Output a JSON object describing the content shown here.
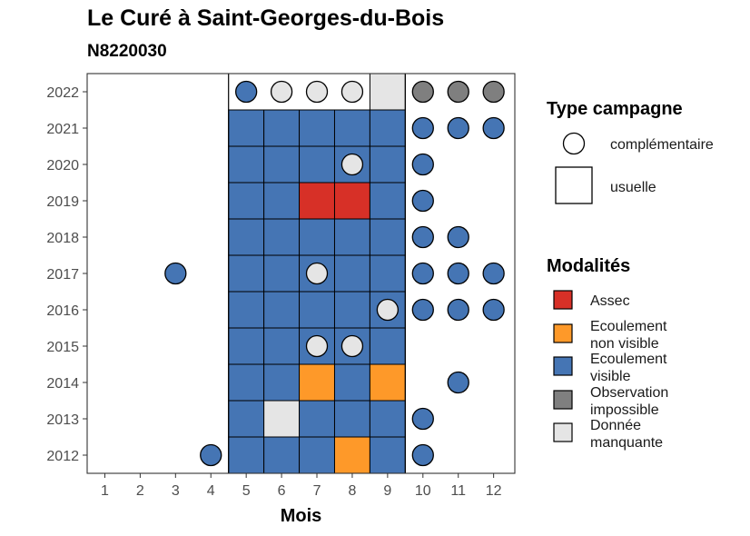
{
  "title": "Le Curé à Saint-Georges-du-Bois",
  "subtitle": "N8220030",
  "chart_data": {
    "type": "heatmap",
    "xlabel": "Mois",
    "ylabel": "",
    "x_ticks": [
      1,
      2,
      3,
      4,
      5,
      6,
      7,
      8,
      9,
      10,
      11,
      12
    ],
    "y_ticks": [
      2012,
      2013,
      2014,
      2015,
      2016,
      2017,
      2018,
      2019,
      2020,
      2021,
      2022
    ],
    "usual_campaign_months": [
      5,
      6,
      7,
      8,
      9
    ],
    "modalities": [
      {
        "key": "assec",
        "label": [
          "Assec"
        ],
        "color": "#D73027"
      },
      {
        "key": "ecoul_nv",
        "label": [
          "Ecoulement",
          "non visible"
        ],
        "color": "#FE9929"
      },
      {
        "key": "ecoul_v",
        "label": [
          "Ecoulement",
          "visible"
        ],
        "color": "#4575B4"
      },
      {
        "key": "obs_imp",
        "label": [
          "Observation",
          "impossible"
        ],
        "color": "#7F7F7F"
      },
      {
        "key": "manquante",
        "label": [
          "Donnée",
          "manquante"
        ],
        "color": "#E5E5E5"
      }
    ],
    "campaign_types": [
      {
        "key": "complementaire",
        "label": "complémentaire",
        "shape": "circle"
      },
      {
        "key": "usuelle",
        "label": "usuelle",
        "shape": "square"
      }
    ],
    "legend_titles": {
      "campaign": "Type campagne",
      "modality": "Modalités"
    },
    "legend_position": "right",
    "observations": [
      {
        "year": 2022,
        "month": 5,
        "type": "complementaire",
        "modality": "ecoul_v"
      },
      {
        "year": 2022,
        "month": 6,
        "type": "complementaire",
        "modality": "manquante"
      },
      {
        "year": 2022,
        "month": 7,
        "type": "complementaire",
        "modality": "manquante"
      },
      {
        "year": 2022,
        "month": 8,
        "type": "complementaire",
        "modality": "manquante"
      },
      {
        "year": 2022,
        "month": 9,
        "type": "usuelle",
        "modality": "manquante"
      },
      {
        "year": 2022,
        "month": 10,
        "type": "complementaire",
        "modality": "obs_imp"
      },
      {
        "year": 2022,
        "month": 11,
        "type": "complementaire",
        "modality": "obs_imp"
      },
      {
        "year": 2022,
        "month": 12,
        "type": "complementaire",
        "modality": "obs_imp"
      },
      {
        "year": 2021,
        "month": 5,
        "type": "usuelle",
        "modality": "ecoul_v"
      },
      {
        "year": 2021,
        "month": 6,
        "type": "usuelle",
        "modality": "ecoul_v"
      },
      {
        "year": 2021,
        "month": 7,
        "type": "usuelle",
        "modality": "ecoul_v"
      },
      {
        "year": 2021,
        "month": 8,
        "type": "usuelle",
        "modality": "ecoul_v"
      },
      {
        "year": 2021,
        "month": 9,
        "type": "usuelle",
        "modality": "ecoul_v"
      },
      {
        "year": 2021,
        "month": 10,
        "type": "complementaire",
        "modality": "ecoul_v"
      },
      {
        "year": 2021,
        "month": 11,
        "type": "complementaire",
        "modality": "ecoul_v"
      },
      {
        "year": 2021,
        "month": 12,
        "type": "complementaire",
        "modality": "ecoul_v"
      },
      {
        "year": 2020,
        "month": 5,
        "type": "usuelle",
        "modality": "ecoul_v"
      },
      {
        "year": 2020,
        "month": 6,
        "type": "usuelle",
        "modality": "ecoul_v"
      },
      {
        "year": 2020,
        "month": 7,
        "type": "usuelle",
        "modality": "ecoul_v"
      },
      {
        "year": 2020,
        "month": 8,
        "type": "usuelle",
        "modality": "ecoul_v"
      },
      {
        "year": 2020,
        "month": 8,
        "type": "complementaire",
        "modality": "manquante"
      },
      {
        "year": 2020,
        "month": 9,
        "type": "usuelle",
        "modality": "ecoul_v"
      },
      {
        "year": 2020,
        "month": 10,
        "type": "complementaire",
        "modality": "ecoul_v"
      },
      {
        "year": 2019,
        "month": 5,
        "type": "usuelle",
        "modality": "ecoul_v"
      },
      {
        "year": 2019,
        "month": 6,
        "type": "usuelle",
        "modality": "ecoul_v"
      },
      {
        "year": 2019,
        "month": 7,
        "type": "usuelle",
        "modality": "assec"
      },
      {
        "year": 2019,
        "month": 8,
        "type": "usuelle",
        "modality": "assec"
      },
      {
        "year": 2019,
        "month": 9,
        "type": "usuelle",
        "modality": "ecoul_v"
      },
      {
        "year": 2019,
        "month": 10,
        "type": "complementaire",
        "modality": "ecoul_v"
      },
      {
        "year": 2018,
        "month": 5,
        "type": "usuelle",
        "modality": "ecoul_v"
      },
      {
        "year": 2018,
        "month": 6,
        "type": "usuelle",
        "modality": "ecoul_v"
      },
      {
        "year": 2018,
        "month": 7,
        "type": "usuelle",
        "modality": "ecoul_v"
      },
      {
        "year": 2018,
        "month": 8,
        "type": "usuelle",
        "modality": "ecoul_v"
      },
      {
        "year": 2018,
        "month": 9,
        "type": "usuelle",
        "modality": "ecoul_v"
      },
      {
        "year": 2018,
        "month": 10,
        "type": "complementaire",
        "modality": "ecoul_v"
      },
      {
        "year": 2018,
        "month": 11,
        "type": "complementaire",
        "modality": "ecoul_v"
      },
      {
        "year": 2017,
        "month": 3,
        "type": "complementaire",
        "modality": "ecoul_v"
      },
      {
        "year": 2017,
        "month": 5,
        "type": "usuelle",
        "modality": "ecoul_v"
      },
      {
        "year": 2017,
        "month": 6,
        "type": "usuelle",
        "modality": "ecoul_v"
      },
      {
        "year": 2017,
        "month": 7,
        "type": "usuelle",
        "modality": "ecoul_v"
      },
      {
        "year": 2017,
        "month": 7,
        "type": "complementaire",
        "modality": "manquante"
      },
      {
        "year": 2017,
        "month": 8,
        "type": "usuelle",
        "modality": "ecoul_v"
      },
      {
        "year": 2017,
        "month": 9,
        "type": "usuelle",
        "modality": "ecoul_v"
      },
      {
        "year": 2017,
        "month": 10,
        "type": "complementaire",
        "modality": "ecoul_v"
      },
      {
        "year": 2017,
        "month": 11,
        "type": "complementaire",
        "modality": "ecoul_v"
      },
      {
        "year": 2017,
        "month": 12,
        "type": "complementaire",
        "modality": "ecoul_v"
      },
      {
        "year": 2016,
        "month": 5,
        "type": "usuelle",
        "modality": "ecoul_v"
      },
      {
        "year": 2016,
        "month": 6,
        "type": "usuelle",
        "modality": "ecoul_v"
      },
      {
        "year": 2016,
        "month": 7,
        "type": "usuelle",
        "modality": "ecoul_v"
      },
      {
        "year": 2016,
        "month": 8,
        "type": "usuelle",
        "modality": "ecoul_v"
      },
      {
        "year": 2016,
        "month": 9,
        "type": "usuelle",
        "modality": "ecoul_v"
      },
      {
        "year": 2016,
        "month": 9,
        "type": "complementaire",
        "modality": "manquante"
      },
      {
        "year": 2016,
        "month": 10,
        "type": "complementaire",
        "modality": "ecoul_v"
      },
      {
        "year": 2016,
        "month": 11,
        "type": "complementaire",
        "modality": "ecoul_v"
      },
      {
        "year": 2016,
        "month": 12,
        "type": "complementaire",
        "modality": "ecoul_v"
      },
      {
        "year": 2015,
        "month": 5,
        "type": "usuelle",
        "modality": "ecoul_v"
      },
      {
        "year": 2015,
        "month": 6,
        "type": "usuelle",
        "modality": "ecoul_v"
      },
      {
        "year": 2015,
        "month": 7,
        "type": "usuelle",
        "modality": "ecoul_v"
      },
      {
        "year": 2015,
        "month": 7,
        "type": "complementaire",
        "modality": "manquante"
      },
      {
        "year": 2015,
        "month": 8,
        "type": "usuelle",
        "modality": "ecoul_v"
      },
      {
        "year": 2015,
        "month": 8,
        "type": "complementaire",
        "modality": "manquante"
      },
      {
        "year": 2015,
        "month": 9,
        "type": "usuelle",
        "modality": "ecoul_v"
      },
      {
        "year": 2014,
        "month": 5,
        "type": "usuelle",
        "modality": "ecoul_v"
      },
      {
        "year": 2014,
        "month": 6,
        "type": "usuelle",
        "modality": "ecoul_v"
      },
      {
        "year": 2014,
        "month": 7,
        "type": "usuelle",
        "modality": "ecoul_nv"
      },
      {
        "year": 2014,
        "month": 8,
        "type": "usuelle",
        "modality": "ecoul_v"
      },
      {
        "year": 2014,
        "month": 9,
        "type": "usuelle",
        "modality": "ecoul_nv"
      },
      {
        "year": 2014,
        "month": 11,
        "type": "complementaire",
        "modality": "ecoul_v"
      },
      {
        "year": 2013,
        "month": 5,
        "type": "usuelle",
        "modality": "ecoul_v"
      },
      {
        "year": 2013,
        "month": 6,
        "type": "usuelle",
        "modality": "manquante"
      },
      {
        "year": 2013,
        "month": 7,
        "type": "usuelle",
        "modality": "ecoul_v"
      },
      {
        "year": 2013,
        "month": 8,
        "type": "usuelle",
        "modality": "ecoul_v"
      },
      {
        "year": 2013,
        "month": 9,
        "type": "usuelle",
        "modality": "ecoul_v"
      },
      {
        "year": 2013,
        "month": 10,
        "type": "complementaire",
        "modality": "ecoul_v"
      },
      {
        "year": 2012,
        "month": 4,
        "type": "complementaire",
        "modality": "ecoul_v"
      },
      {
        "year": 2012,
        "month": 5,
        "type": "usuelle",
        "modality": "ecoul_v"
      },
      {
        "year": 2012,
        "month": 6,
        "type": "usuelle",
        "modality": "ecoul_v"
      },
      {
        "year": 2012,
        "month": 7,
        "type": "usuelle",
        "modality": "ecoul_v"
      },
      {
        "year": 2012,
        "month": 8,
        "type": "usuelle",
        "modality": "ecoul_nv"
      },
      {
        "year": 2012,
        "month": 9,
        "type": "usuelle",
        "modality": "ecoul_v"
      },
      {
        "year": 2012,
        "month": 10,
        "type": "complementaire",
        "modality": "ecoul_v"
      }
    ]
  }
}
